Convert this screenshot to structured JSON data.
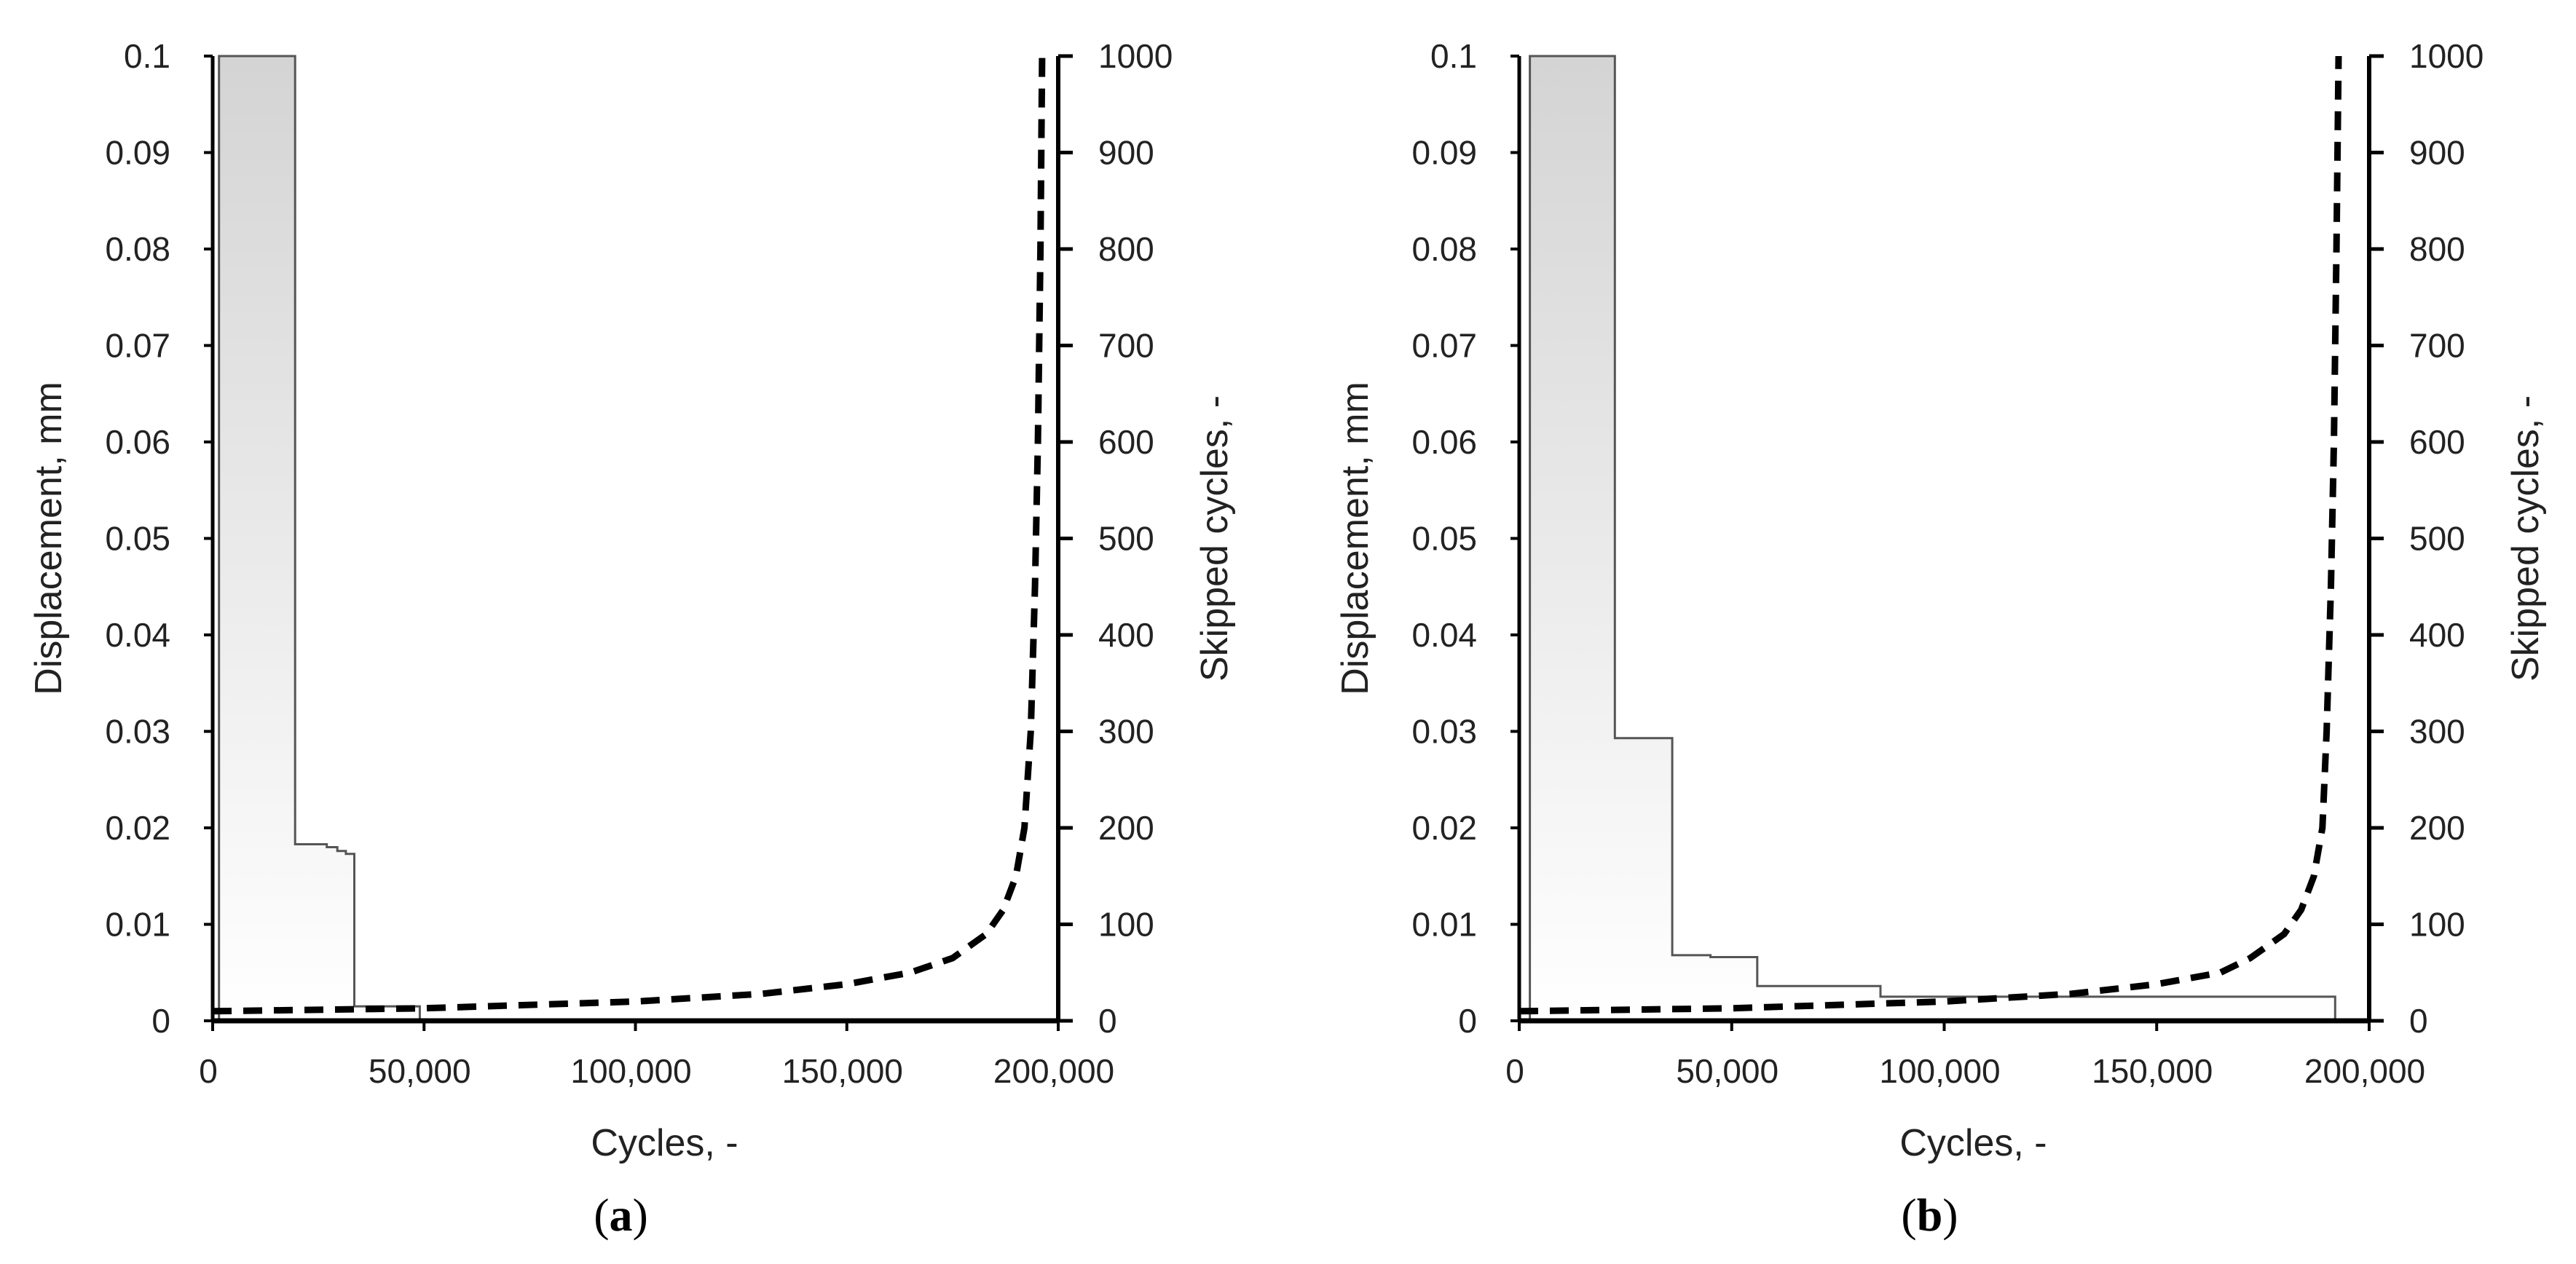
{
  "chart_data": [
    {
      "type": "line",
      "panel_label": "a",
      "xlabel": "Cycles, -",
      "ylabel_left": "Displacement, mm",
      "ylabel_right": "Skipped cycles, -",
      "xlim": [
        0,
        200000
      ],
      "ylim_left": [
        0,
        0.1
      ],
      "ylim_right": [
        0,
        1000
      ],
      "x_ticks": [
        "0",
        "50,000",
        "100,000",
        "150,000",
        "200,000"
      ],
      "y_ticks_left": [
        "0",
        "0.01",
        "0.02",
        "0.03",
        "0.04",
        "0.05",
        "0.06",
        "0.07",
        "0.08",
        "0.09",
        "0.1"
      ],
      "y_ticks_right": [
        "0",
        "100",
        "200",
        "300",
        "400",
        "500",
        "600",
        "700",
        "800",
        "900",
        "1000"
      ],
      "grid": false,
      "series": [
        {
          "axis": "left",
          "style": "solid-step-area",
          "points": [
            [
              1500,
              0
            ],
            [
              1500,
              0.1
            ],
            [
              19500,
              0.1
            ],
            [
              19500,
              0.0183
            ],
            [
              27000,
              0.0183
            ],
            [
              27000,
              0.018
            ],
            [
              29500,
              0.018
            ],
            [
              29500,
              0.0176
            ],
            [
              31500,
              0.0176
            ],
            [
              31500,
              0.0173
            ],
            [
              33500,
              0.0173
            ],
            [
              33500,
              0.0015
            ],
            [
              49000,
              0.0015
            ],
            [
              49000,
              0
            ]
          ]
        },
        {
          "axis": "right",
          "style": "dashed",
          "points": [
            [
              0,
              10
            ],
            [
              50000,
              13
            ],
            [
              100000,
              20
            ],
            [
              130000,
              28
            ],
            [
              150000,
              38
            ],
            [
              165000,
              50
            ],
            [
              175000,
              65
            ],
            [
              183000,
              90
            ],
            [
              187000,
              115
            ],
            [
              190000,
              150
            ],
            [
              192000,
              200
            ],
            [
              193500,
              300
            ],
            [
              194500,
              450
            ],
            [
              195200,
              600
            ],
            [
              195800,
              800
            ],
            [
              196200,
              1000
            ]
          ]
        }
      ]
    },
    {
      "type": "line",
      "panel_label": "b",
      "xlabel": "Cycles, -",
      "ylabel_left": "Displacement, mm",
      "ylabel_right": "Skipped cycles, -",
      "xlim": [
        0,
        200000
      ],
      "ylim_left": [
        0,
        0.1
      ],
      "ylim_right": [
        0,
        1000
      ],
      "x_ticks": [
        "0",
        "50,000",
        "100,000",
        "150,000",
        "200,000"
      ],
      "y_ticks_left": [
        "0",
        "0.01",
        "0.02",
        "0.03",
        "0.04",
        "0.05",
        "0.06",
        "0.07",
        "0.08",
        "0.09",
        "0.1"
      ],
      "y_ticks_right": [
        "0",
        "100",
        "200",
        "300",
        "400",
        "500",
        "600",
        "700",
        "800",
        "900",
        "1000"
      ],
      "grid": false,
      "series": [
        {
          "axis": "left",
          "style": "solid-step-area",
          "points": [
            [
              2500,
              0
            ],
            [
              2500,
              0.1
            ],
            [
              22500,
              0.1
            ],
            [
              22500,
              0.0293
            ],
            [
              36000,
              0.0293
            ],
            [
              36000,
              0.0068
            ],
            [
              45000,
              0.0068
            ],
            [
              45000,
              0.0066
            ],
            [
              56000,
              0.0066
            ],
            [
              56000,
              0.0036
            ],
            [
              85000,
              0.0036
            ],
            [
              85000,
              0.0025
            ],
            [
              192000,
              0.0025
            ],
            [
              192000,
              0
            ]
          ]
        },
        {
          "axis": "right",
          "style": "dashed",
          "points": [
            [
              0,
              10
            ],
            [
              50000,
              13
            ],
            [
              100000,
              20
            ],
            [
              130000,
              28
            ],
            [
              150000,
              38
            ],
            [
              165000,
              50
            ],
            [
              172000,
              65
            ],
            [
              180000,
              90
            ],
            [
              184000,
              115
            ],
            [
              187000,
              150
            ],
            [
              189000,
              200
            ],
            [
              190000,
              300
            ],
            [
              191000,
              450
            ],
            [
              191700,
              600
            ],
            [
              192300,
              800
            ],
            [
              192800,
              1000
            ]
          ]
        }
      ]
    }
  ]
}
